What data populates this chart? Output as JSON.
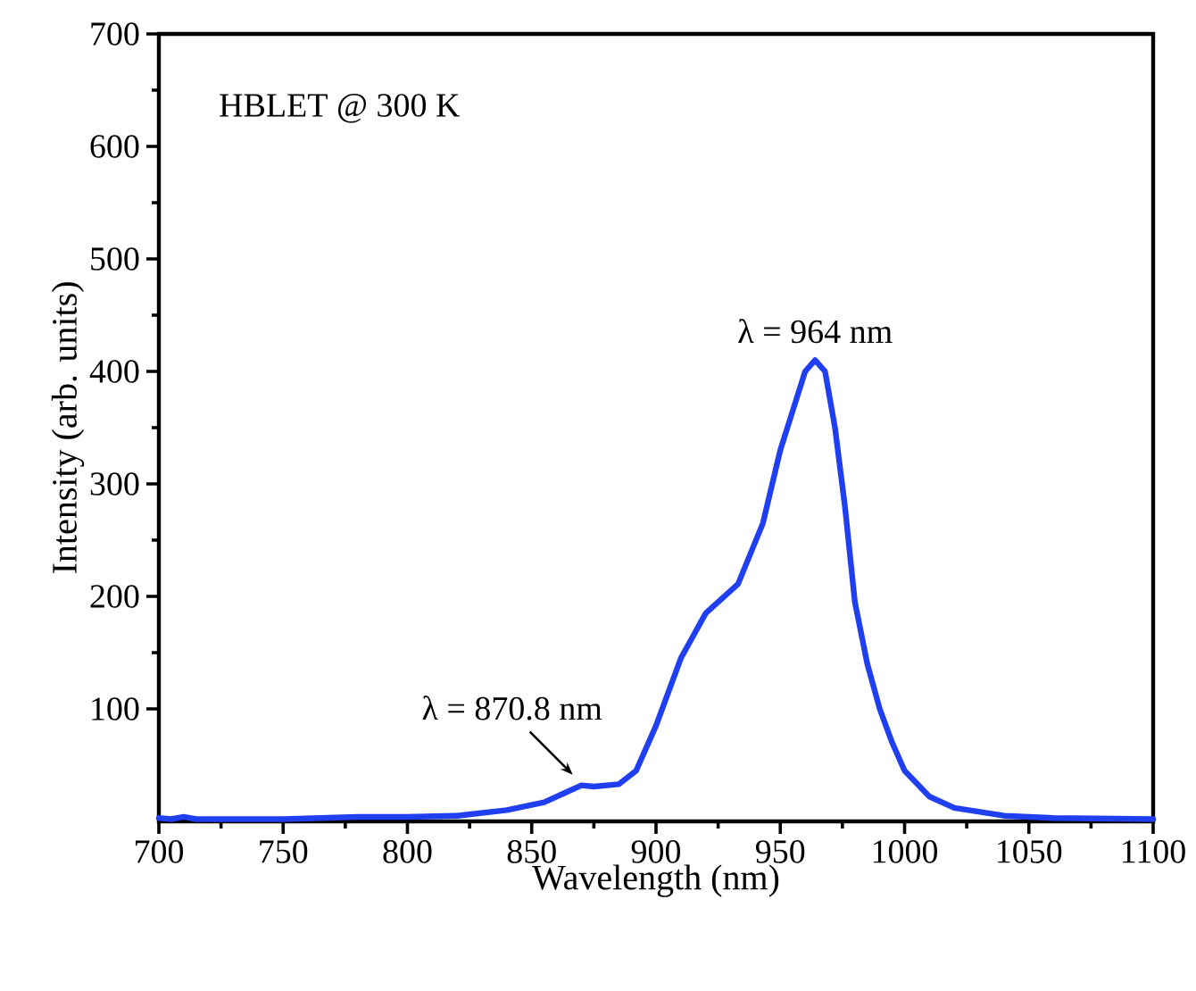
{
  "chart_data": {
    "type": "line",
    "xlabel": "Wavelength (nm)",
    "ylabel": "Intensity (arb. units)",
    "xlim": [
      700,
      1100
    ],
    "ylim": [
      0,
      700
    ],
    "xticks": [
      700,
      750,
      800,
      850,
      900,
      950,
      1000,
      1050,
      1100
    ],
    "yticks": [
      100,
      200,
      300,
      400,
      500,
      600,
      700
    ],
    "grid": false,
    "annotations": [
      "HBLET @ 300 K",
      {
        "text": "λ = 870.8 nm",
        "x": 870.8,
        "y": 32
      },
      {
        "text": "λ = 964 nm",
        "x": 964,
        "y": 410
      }
    ],
    "series": [
      {
        "color": "#1f3ff0",
        "line_style": "solid",
        "marker": "none",
        "x": [
          700,
          705,
          710,
          715,
          720,
          750,
          780,
          800,
          820,
          840,
          855,
          863,
          870,
          875,
          885,
          892,
          900,
          910,
          920,
          933,
          943,
          950,
          955,
          960,
          964,
          968,
          972,
          976,
          980,
          985,
          990,
          995,
          1000,
          1010,
          1020,
          1040,
          1060,
          1100
        ],
        "values": [
          3,
          2,
          4,
          2,
          2,
          2,
          4,
          4,
          5,
          10,
          17,
          25,
          32,
          31,
          33,
          45,
          85,
          145,
          185,
          211,
          265,
          330,
          365,
          400,
          410,
          400,
          350,
          280,
          195,
          140,
          100,
          70,
          45,
          22,
          12,
          5,
          3,
          2
        ]
      }
    ]
  }
}
